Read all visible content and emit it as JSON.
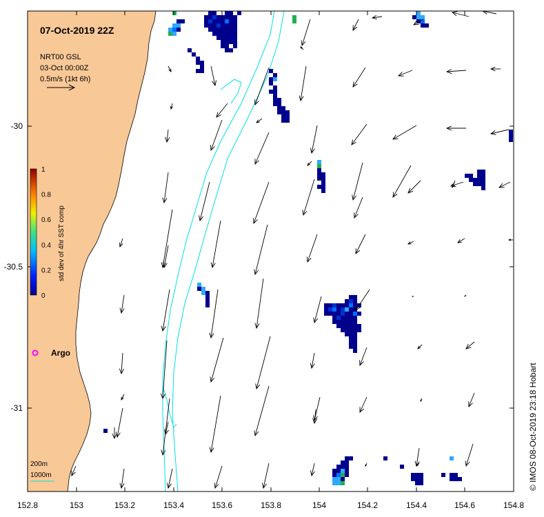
{
  "map": {
    "title": "07-Oct-2019 22Z",
    "info_line1": "NRT00 GSL",
    "info_line2": "03-Oct 00:00Z",
    "info_line3": "0.5m/s (1kt 6h)",
    "credit": "© IMOS 08-Oct-2019 23:18 Hobart",
    "argo_label": "Argo",
    "contour_label_1": "200m",
    "contour_label_2": "1000m",
    "lon_ticks": [
      "152.8",
      "153",
      "153.2",
      "153.4",
      "153.6",
      "153.8",
      "154",
      "154.2",
      "154.4",
      "154.6",
      "154.8"
    ],
    "lat_ticks": [
      "-30",
      "-30.5",
      "-31"
    ],
    "colorbar": {
      "label": "std dev of 4hr SST comp",
      "ticks": [
        "1",
        "0.8",
        "0.6",
        "0.4",
        "0.2",
        "0"
      ]
    },
    "colors": {
      "land": "#F8C896",
      "coastline": "#000000",
      "isobath": "#00E0E0",
      "argo": "#FF00FF",
      "sst_low": "#00008C",
      "sst_mid": "#0050FF",
      "sst_hi": "#00A0FF",
      "sst_green": "#20B050"
    }
  }
}
